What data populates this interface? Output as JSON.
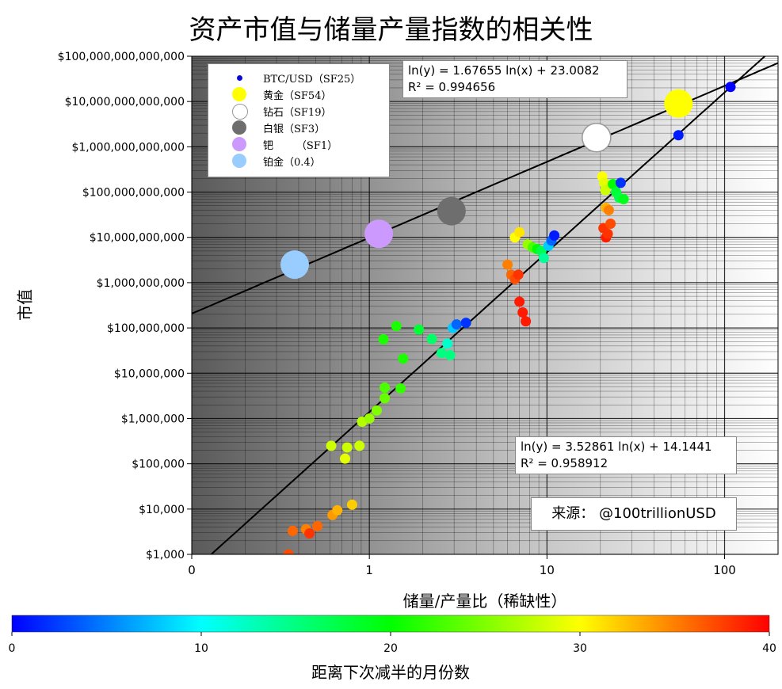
{
  "title": "资产市值与储量产量指数的相关性",
  "source": "来源：   @100trillionUSD",
  "colorbar": {
    "label": "距离下次减半的月份数",
    "ticks": [
      "0",
      "10",
      "20",
      "30",
      "40"
    ],
    "range": [
      0,
      40
    ],
    "colors": [
      "#0000ff",
      "#00ffff",
      "#00ff00",
      "#ffff00",
      "#ff0000"
    ]
  },
  "legend": [
    {
      "label": "BTC/USD（SF25）",
      "color": "#0a0ad8",
      "size": "small"
    },
    {
      "label": "黄金（SF54）",
      "color": "#ffff00",
      "size": "large"
    },
    {
      "label": "钻石（SF19）",
      "color": "#ffffff",
      "size": "large"
    },
    {
      "label": "白银（SF3）",
      "color": "#6e6e6e",
      "size": "large"
    },
    {
      "label": "钯       （SF1）",
      "color": "#cc99ff",
      "size": "large"
    },
    {
      "label": "铂金（0.4）",
      "color": "#99ccff",
      "size": "large"
    }
  ],
  "equations": {
    "eq1_line1": "ln(y) = 1.67655 ln(x) + 23.0082",
    "eq1_line2": "R² = 0.994656",
    "eq2_line1": "ln(y) = 3.52861 ln(x) + 14.1441",
    "eq2_line2": "R² = 0.958912"
  },
  "chart_data": {
    "type": "scatter",
    "title": "资产市值与储量产量指数的相关性",
    "xlabel": "储量/产量比（稀缺性）",
    "ylabel": "市值",
    "x_scale": "log",
    "y_scale": "log",
    "xlim": [
      0.1,
      200
    ],
    "ylim": [
      1000,
      100000000000000
    ],
    "x_ticks": [
      {
        "value": 0.1,
        "label": "0"
      },
      {
        "value": 1,
        "label": "1"
      },
      {
        "value": 10,
        "label": "10"
      },
      {
        "value": 100,
        "label": "100"
      }
    ],
    "y_ticks": [
      {
        "value": 1000,
        "label": "$1,000"
      },
      {
        "value": 10000,
        "label": "$10,000"
      },
      {
        "value": 100000,
        "label": "$100,000"
      },
      {
        "value": 1000000,
        "label": "$1,000,000"
      },
      {
        "value": 10000000,
        "label": "$10,000,000"
      },
      {
        "value": 100000000,
        "label": "$100,000,000"
      },
      {
        "value": 1000000000,
        "label": "$1,000,000,000"
      },
      {
        "value": 10000000000,
        "label": "$10,000,000,000"
      },
      {
        "value": 100000000000,
        "label": "$100,000,000,000"
      },
      {
        "value": 1000000000000,
        "label": "$1,000,000,000,000"
      },
      {
        "value": 10000000000000,
        "label": "$10,000,000,000,000"
      },
      {
        "value": 100000000000000,
        "label": "$100,000,000,000,000"
      }
    ],
    "grid": true,
    "legend_position": "top-left",
    "fit_lines": [
      {
        "slope": 1.67655,
        "intercept": 23.0082,
        "r2": 0.994656
      },
      {
        "slope": 3.52861,
        "intercept": 14.1441,
        "r2": 0.958912
      }
    ],
    "assets": [
      {
        "name": "黄金",
        "x": 55,
        "y": 9000000000000,
        "color": "#ffff00"
      },
      {
        "name": "钻石",
        "x": 19,
        "y": 1600000000000,
        "color": "#ffffff"
      },
      {
        "name": "白银",
        "x": 2.9,
        "y": 38000000000,
        "color": "#6e6e6e"
      },
      {
        "name": "钯",
        "x": 1.13,
        "y": 12000000000,
        "color": "#cc99ff"
      },
      {
        "name": "铂金",
        "x": 0.38,
        "y": 2500000000,
        "color": "#99ccff"
      }
    ],
    "btc_months": [
      {
        "x": 0.35,
        "y": 1000,
        "m": 37
      },
      {
        "x": 0.37,
        "y": 3300,
        "m": 36
      },
      {
        "x": 0.44,
        "y": 3600,
        "m": 35
      },
      {
        "x": 0.46,
        "y": 2900,
        "m": 38
      },
      {
        "x": 0.51,
        "y": 4200,
        "m": 36
      },
      {
        "x": 0.62,
        "y": 7400,
        "m": 34
      },
      {
        "x": 0.66,
        "y": 9400,
        "m": 33
      },
      {
        "x": 0.8,
        "y": 12500,
        "m": 32
      },
      {
        "x": 0.61,
        "y": 250000,
        "m": 28
      },
      {
        "x": 0.73,
        "y": 130000,
        "m": 29
      },
      {
        "x": 0.75,
        "y": 230000,
        "m": 28
      },
      {
        "x": 0.88,
        "y": 250000,
        "m": 28
      },
      {
        "x": 0.91,
        "y": 850000,
        "m": 27
      },
      {
        "x": 1.0,
        "y": 1000000,
        "m": 26
      },
      {
        "x": 1.1,
        "y": 1500000,
        "m": 25
      },
      {
        "x": 1.22,
        "y": 2800000,
        "m": 24
      },
      {
        "x": 1.22,
        "y": 4800000,
        "m": 23
      },
      {
        "x": 1.5,
        "y": 4600000,
        "m": 22
      },
      {
        "x": 1.55,
        "y": 21000000,
        "m": 21
      },
      {
        "x": 1.2,
        "y": 56000000,
        "m": 21
      },
      {
        "x": 1.42,
        "y": 110000000,
        "m": 21
      },
      {
        "x": 1.9,
        "y": 92000000,
        "m": 18
      },
      {
        "x": 2.25,
        "y": 57000000,
        "m": 16
      },
      {
        "x": 2.55,
        "y": 28000000,
        "m": 15
      },
      {
        "x": 2.85,
        "y": 25000000,
        "m": 15
      },
      {
        "x": 2.75,
        "y": 45000000,
        "m": 12
      },
      {
        "x": 2.95,
        "y": 100000000,
        "m": 8
      },
      {
        "x": 3.1,
        "y": 120000000,
        "m": 4
      },
      {
        "x": 3.5,
        "y": 130000000,
        "m": 2
      },
      {
        "x": 6.0,
        "y": 2500000000,
        "m": 35
      },
      {
        "x": 6.3,
        "y": 1500000000,
        "m": 36
      },
      {
        "x": 6.6,
        "y": 1200000000,
        "m": 37
      },
      {
        "x": 6.9,
        "y": 1500000000,
        "m": 38
      },
      {
        "x": 7.0,
        "y": 380000000,
        "m": 39
      },
      {
        "x": 7.3,
        "y": 220000000,
        "m": 39
      },
      {
        "x": 7.6,
        "y": 140000000,
        "m": 39
      },
      {
        "x": 6.6,
        "y": 10000000000,
        "m": 30
      },
      {
        "x": 7.0,
        "y": 13000000000,
        "m": 31
      },
      {
        "x": 7.8,
        "y": 7000000000,
        "m": 26
      },
      {
        "x": 8.3,
        "y": 6000000000,
        "m": 23
      },
      {
        "x": 8.8,
        "y": 5500000000,
        "m": 20
      },
      {
        "x": 9.3,
        "y": 5000000000,
        "m": 17
      },
      {
        "x": 9.6,
        "y": 3500000000,
        "m": 14
      },
      {
        "x": 10.2,
        "y": 6500000000,
        "m": 8
      },
      {
        "x": 10.6,
        "y": 8500000000,
        "m": 4
      },
      {
        "x": 11.0,
        "y": 11000000000,
        "m": 1
      },
      {
        "x": 20.5,
        "y": 220000000000,
        "m": 30
      },
      {
        "x": 21.0,
        "y": 160000000000,
        "m": 29
      },
      {
        "x": 21.3,
        "y": 110000000000,
        "m": 28
      },
      {
        "x": 21.5,
        "y": 45000000000,
        "m": 33
      },
      {
        "x": 22.3,
        "y": 40000000000,
        "m": 35
      },
      {
        "x": 20.8,
        "y": 16000000000,
        "m": 38
      },
      {
        "x": 21.5,
        "y": 10000000000,
        "m": 39
      },
      {
        "x": 22.0,
        "y": 12000000000,
        "m": 38
      },
      {
        "x": 22.8,
        "y": 20000000000,
        "m": 37
      },
      {
        "x": 23.5,
        "y": 150000000000,
        "m": 20
      },
      {
        "x": 24.5,
        "y": 100000000000,
        "m": 18
      },
      {
        "x": 25.5,
        "y": 75000000000,
        "m": 17
      },
      {
        "x": 27.0,
        "y": 70000000000,
        "m": 19
      },
      {
        "x": 26.0,
        "y": 160000000000,
        "m": 2
      },
      {
        "x": 55.0,
        "y": 1800000000000,
        "m": 1
      },
      {
        "x": 108.0,
        "y": 21000000000000,
        "m": 0
      }
    ]
  }
}
